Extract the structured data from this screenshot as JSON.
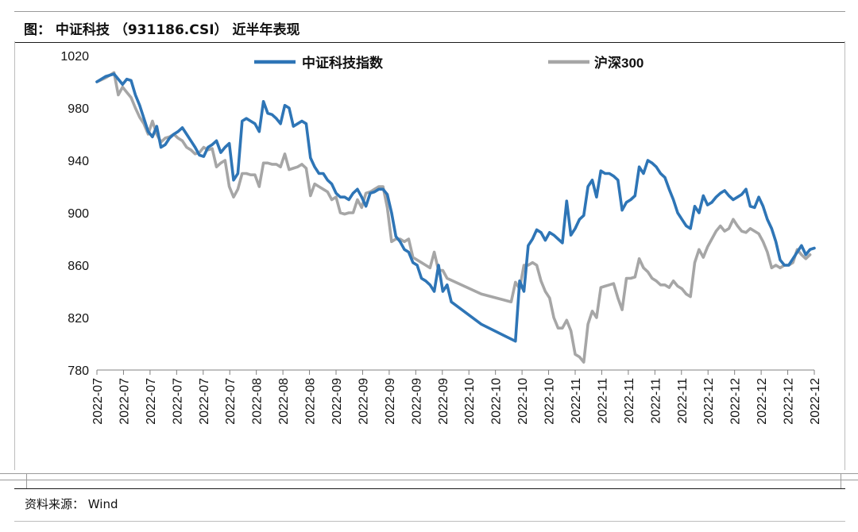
{
  "header": {
    "title": "图：  中证科技  （931186.CSI）  近半年表现"
  },
  "footer": {
    "source": "资料来源：   Wind"
  },
  "colors": {
    "series_1": "#2e75b6",
    "series_2": "#a6a6a6",
    "axis": "#808080"
  },
  "chart_data": {
    "type": "line",
    "ylim": [
      780,
      1020
    ],
    "yticks": [
      780,
      820,
      860,
      900,
      940,
      980,
      1020
    ],
    "xticklabels": [
      "2022-07",
      "2022-07",
      "2022-07",
      "2022-07",
      "2022-07",
      "2022-07",
      "2022-08",
      "2022-08",
      "2022-08",
      "2022-09",
      "2022-09",
      "2022-09",
      "2022-09",
      "2022-09",
      "2022-10",
      "2022-10",
      "2022-10",
      "2022-10",
      "2022-11",
      "2022-11",
      "2022-11",
      "2022-11",
      "2022-11",
      "2022-12",
      "2022-12",
      "2022-12",
      "2022-12",
      "2022-12"
    ],
    "legend_position": "top",
    "grid": false,
    "series": [
      {
        "name": "中证科技指数",
        "values": [
          [
            0,
            1000
          ],
          [
            2,
            1004
          ],
          [
            4,
            1006
          ],
          [
            5,
            1002
          ],
          [
            6,
            998
          ],
          [
            7,
            1002
          ],
          [
            8,
            1001
          ],
          [
            9,
            990
          ],
          [
            10,
            982
          ],
          [
            12,
            962
          ],
          [
            13,
            958
          ],
          [
            14,
            966
          ],
          [
            15,
            950
          ],
          [
            16,
            952
          ],
          [
            17,
            957
          ],
          [
            18,
            960
          ],
          [
            19,
            962
          ],
          [
            20,
            965
          ],
          [
            21,
            960
          ],
          [
            22,
            955
          ],
          [
            23,
            950
          ],
          [
            24,
            944
          ],
          [
            25,
            943
          ],
          [
            26,
            950
          ],
          [
            27,
            952
          ],
          [
            28,
            955
          ],
          [
            29,
            946
          ],
          [
            30,
            950
          ],
          [
            31,
            953
          ],
          [
            32,
            925
          ],
          [
            33,
            930
          ],
          [
            34,
            970
          ],
          [
            35,
            972
          ],
          [
            36,
            970
          ],
          [
            37,
            968
          ],
          [
            38,
            962
          ],
          [
            39,
            985
          ],
          [
            40,
            976
          ],
          [
            41,
            975
          ],
          [
            42,
            972
          ],
          [
            43,
            968
          ],
          [
            44,
            982
          ],
          [
            45,
            980
          ],
          [
            46,
            966
          ],
          [
            47,
            968
          ],
          [
            48,
            970
          ],
          [
            49,
            968
          ],
          [
            50,
            942
          ],
          [
            51,
            935
          ],
          [
            52,
            930
          ],
          [
            53,
            930
          ],
          [
            54,
            925
          ],
          [
            55,
            922
          ],
          [
            56,
            915
          ],
          [
            57,
            912
          ],
          [
            58,
            912
          ],
          [
            59,
            910
          ],
          [
            60,
            915
          ],
          [
            61,
            918
          ],
          [
            62,
            912
          ],
          [
            63,
            905
          ],
          [
            64,
            915
          ],
          [
            65,
            916
          ],
          [
            66,
            918
          ],
          [
            67,
            918
          ],
          [
            68,
            914
          ],
          [
            69,
            900
          ],
          [
            70,
            882
          ],
          [
            71,
            878
          ],
          [
            72,
            872
          ],
          [
            73,
            870
          ],
          [
            74,
            862
          ],
          [
            75,
            860
          ],
          [
            76,
            850
          ],
          [
            77,
            848
          ],
          [
            78,
            845
          ],
          [
            79,
            840
          ],
          [
            80,
            860
          ],
          [
            81,
            840
          ],
          [
            82,
            845
          ],
          [
            83,
            832
          ],
          [
            90,
            815
          ],
          [
            98,
            802
          ],
          [
            99,
            848
          ],
          [
            100,
            840
          ],
          [
            101,
            875
          ],
          [
            102,
            880
          ],
          [
            103,
            887
          ],
          [
            104,
            885
          ],
          [
            105,
            879
          ],
          [
            106,
            885
          ],
          [
            107,
            883
          ],
          [
            108,
            880
          ],
          [
            109,
            877
          ],
          [
            110,
            909
          ],
          [
            111,
            883
          ],
          [
            112,
            888
          ],
          [
            113,
            895
          ],
          [
            114,
            898
          ],
          [
            115,
            920
          ],
          [
            116,
            925
          ],
          [
            117,
            912
          ],
          [
            118,
            932
          ],
          [
            119,
            930
          ],
          [
            120,
            930
          ],
          [
            121,
            928
          ],
          [
            122,
            925
          ],
          [
            123,
            902
          ],
          [
            124,
            908
          ],
          [
            125,
            910
          ],
          [
            126,
            913
          ],
          [
            127,
            935
          ],
          [
            128,
            930
          ],
          [
            129,
            940
          ],
          [
            130,
            938
          ],
          [
            131,
            935
          ],
          [
            132,
            930
          ],
          [
            133,
            927
          ],
          [
            134,
            918
          ],
          [
            135,
            910
          ],
          [
            136,
            900
          ],
          [
            137,
            895
          ],
          [
            138,
            890
          ],
          [
            139,
            888
          ],
          [
            140,
            905
          ],
          [
            141,
            900
          ],
          [
            142,
            913
          ],
          [
            143,
            906
          ],
          [
            144,
            908
          ],
          [
            145,
            912
          ],
          [
            146,
            915
          ],
          [
            147,
            917
          ],
          [
            148,
            913
          ],
          [
            149,
            910
          ],
          [
            150,
            912
          ],
          [
            151,
            914
          ],
          [
            152,
            918
          ],
          [
            153,
            905
          ],
          [
            154,
            904
          ],
          [
            155,
            912
          ],
          [
            156,
            905
          ],
          [
            157,
            895
          ],
          [
            158,
            888
          ],
          [
            159,
            878
          ],
          [
            160,
            864
          ],
          [
            161,
            860
          ],
          [
            162,
            860
          ],
          [
            163,
            865
          ],
          [
            164,
            870
          ],
          [
            165,
            875
          ],
          [
            166,
            868
          ],
          [
            167,
            872
          ],
          [
            168,
            873
          ]
        ]
      },
      {
        "name": "沪深300",
        "values": [
          [
            0,
            1000
          ],
          [
            2,
            1003
          ],
          [
            4,
            1007
          ],
          [
            5,
            990
          ],
          [
            6,
            996
          ],
          [
            7,
            992
          ],
          [
            8,
            988
          ],
          [
            9,
            980
          ],
          [
            10,
            973
          ],
          [
            11,
            968
          ],
          [
            12,
            960
          ],
          [
            13,
            970
          ],
          [
            14,
            960
          ],
          [
            15,
            954
          ],
          [
            16,
            957
          ],
          [
            17,
            958
          ],
          [
            18,
            960
          ],
          [
            19,
            957
          ],
          [
            20,
            955
          ],
          [
            21,
            950
          ],
          [
            22,
            948
          ],
          [
            23,
            945
          ],
          [
            24,
            946
          ],
          [
            25,
            950
          ],
          [
            26,
            948
          ],
          [
            27,
            949
          ],
          [
            28,
            935
          ],
          [
            29,
            938
          ],
          [
            30,
            940
          ],
          [
            31,
            920
          ],
          [
            32,
            912
          ],
          [
            33,
            918
          ],
          [
            34,
            930
          ],
          [
            35,
            930
          ],
          [
            36,
            929
          ],
          [
            37,
            929
          ],
          [
            38,
            920
          ],
          [
            39,
            938
          ],
          [
            40,
            938
          ],
          [
            41,
            937
          ],
          [
            42,
            937
          ],
          [
            43,
            935
          ],
          [
            44,
            945
          ],
          [
            45,
            933
          ],
          [
            46,
            934
          ],
          [
            47,
            935
          ],
          [
            48,
            937
          ],
          [
            49,
            934
          ],
          [
            50,
            913
          ],
          [
            51,
            922
          ],
          [
            52,
            920
          ],
          [
            53,
            918
          ],
          [
            54,
            916
          ],
          [
            55,
            910
          ],
          [
            56,
            912
          ],
          [
            57,
            900
          ],
          [
            58,
            899
          ],
          [
            59,
            900
          ],
          [
            60,
            900
          ],
          [
            61,
            910
          ],
          [
            62,
            904
          ],
          [
            63,
            915
          ],
          [
            64,
            916
          ],
          [
            65,
            918
          ],
          [
            66,
            920
          ],
          [
            67,
            920
          ],
          [
            68,
            904
          ],
          [
            69,
            878
          ],
          [
            70,
            880
          ],
          [
            71,
            880
          ],
          [
            72,
            878
          ],
          [
            73,
            880
          ],
          [
            74,
            866
          ],
          [
            75,
            864
          ],
          [
            76,
            862
          ],
          [
            77,
            860
          ],
          [
            78,
            858
          ],
          [
            79,
            870
          ],
          [
            80,
            856
          ],
          [
            81,
            856
          ],
          [
            82,
            850
          ],
          [
            90,
            838
          ],
          [
            97,
            832
          ],
          [
            98,
            847
          ],
          [
            99,
            842
          ],
          [
            100,
            860
          ],
          [
            101,
            860
          ],
          [
            102,
            862
          ],
          [
            103,
            860
          ],
          [
            104,
            848
          ],
          [
            105,
            840
          ],
          [
            106,
            835
          ],
          [
            107,
            820
          ],
          [
            108,
            812
          ],
          [
            109,
            812
          ],
          [
            110,
            818
          ],
          [
            111,
            810
          ],
          [
            112,
            792
          ],
          [
            113,
            790
          ],
          [
            114,
            786
          ],
          [
            115,
            815
          ],
          [
            116,
            825
          ],
          [
            117,
            820
          ],
          [
            118,
            843
          ],
          [
            119,
            844
          ],
          [
            120,
            845
          ],
          [
            121,
            846
          ],
          [
            122,
            835
          ],
          [
            123,
            826
          ],
          [
            124,
            850
          ],
          [
            125,
            850
          ],
          [
            126,
            851
          ],
          [
            127,
            865
          ],
          [
            128,
            858
          ],
          [
            129,
            855
          ],
          [
            130,
            850
          ],
          [
            131,
            848
          ],
          [
            132,
            845
          ],
          [
            133,
            845
          ],
          [
            134,
            843
          ],
          [
            135,
            848
          ],
          [
            136,
            844
          ],
          [
            137,
            842
          ],
          [
            138,
            838
          ],
          [
            139,
            836
          ],
          [
            140,
            862
          ],
          [
            141,
            872
          ],
          [
            142,
            866
          ],
          [
            143,
            874
          ],
          [
            144,
            880
          ],
          [
            145,
            886
          ],
          [
            146,
            890
          ],
          [
            147,
            886
          ],
          [
            148,
            888
          ],
          [
            149,
            895
          ],
          [
            150,
            890
          ],
          [
            151,
            886
          ],
          [
            152,
            885
          ],
          [
            153,
            888
          ],
          [
            154,
            886
          ],
          [
            155,
            884
          ],
          [
            156,
            878
          ],
          [
            157,
            870
          ],
          [
            158,
            858
          ],
          [
            159,
            860
          ],
          [
            160,
            858
          ],
          [
            161,
            860
          ],
          [
            162,
            860
          ],
          [
            163,
            862
          ],
          [
            164,
            872
          ],
          [
            165,
            868
          ],
          [
            166,
            865
          ],
          [
            167,
            868
          ]
        ]
      }
    ]
  }
}
